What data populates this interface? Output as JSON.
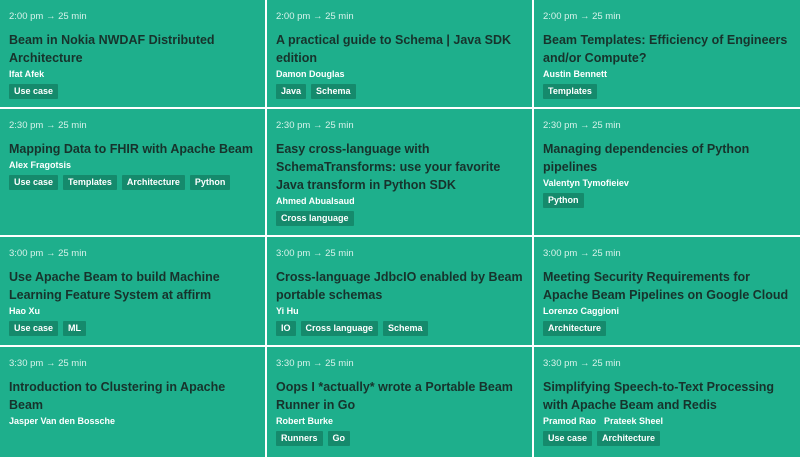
{
  "sessions": [
    {
      "time": "2:00 pm → 25 min",
      "title": "Beam in Nokia NWDAF Distributed Architecture",
      "speakers": [
        "Ifat Afek"
      ],
      "tags": [
        "Use case"
      ]
    },
    {
      "time": "2:00 pm → 25 min",
      "title": "A practical guide to Schema | Java SDK edition",
      "speakers": [
        "Damon Douglas"
      ],
      "tags": [
        "Java",
        "Schema"
      ]
    },
    {
      "time": "2:00 pm → 25 min",
      "title": "Beam Templates: Efficiency of Engineers and/or Compute?",
      "speakers": [
        "Austin Bennett"
      ],
      "tags": [
        "Templates"
      ]
    },
    {
      "time": "2:30 pm → 25 min",
      "title": "Mapping Data to FHIR with Apache Beam",
      "speakers": [
        "Alex Fragotsis"
      ],
      "tags": [
        "Use case",
        "Templates",
        "Architecture",
        "Python"
      ]
    },
    {
      "time": "2:30 pm → 25 min",
      "title": "Easy cross-language with SchemaTransforms: use your favorite Java transform in Python SDK",
      "speakers": [
        "Ahmed Abualsaud"
      ],
      "tags": [
        "Cross language"
      ]
    },
    {
      "time": "2:30 pm → 25 min",
      "title": "Managing dependencies of Python pipelines",
      "speakers": [
        "Valentyn Tymofieiev"
      ],
      "tags": [
        "Python"
      ]
    },
    {
      "time": "3:00 pm → 25 min",
      "title": "Use Apache Beam to build Machine Learning Feature System at affirm",
      "speakers": [
        "Hao Xu"
      ],
      "tags": [
        "Use case",
        "ML"
      ]
    },
    {
      "time": "3:00 pm → 25 min",
      "title": "Cross-language JdbcIO enabled by Beam portable schemas",
      "speakers": [
        "Yi Hu"
      ],
      "tags": [
        "IO",
        "Cross language",
        "Schema"
      ]
    },
    {
      "time": "3:00 pm → 25 min",
      "title": "Meeting Security Requirements for Apache Beam Pipelines on Google Cloud",
      "speakers": [
        "Lorenzo Caggioni"
      ],
      "tags": [
        "Architecture"
      ]
    },
    {
      "time": "3:30 pm → 25 min",
      "title": "Introduction to Clustering in Apache Beam",
      "speakers": [
        "Jasper Van den Bossche"
      ],
      "tags": []
    },
    {
      "time": "3:30 pm → 25 min",
      "title": "Oops I *actually* wrote a Portable Beam Runner in Go",
      "speakers": [
        "Robert Burke"
      ],
      "tags": [
        "Runners",
        "Go"
      ]
    },
    {
      "time": "3:30 pm → 25 min",
      "title": "Simplifying Speech-to-Text Processing with Apache Beam and Redis",
      "speakers": [
        "Pramod Rao",
        "Prateek Sheel"
      ],
      "tags": [
        "Use case",
        "Architecture"
      ]
    }
  ]
}
